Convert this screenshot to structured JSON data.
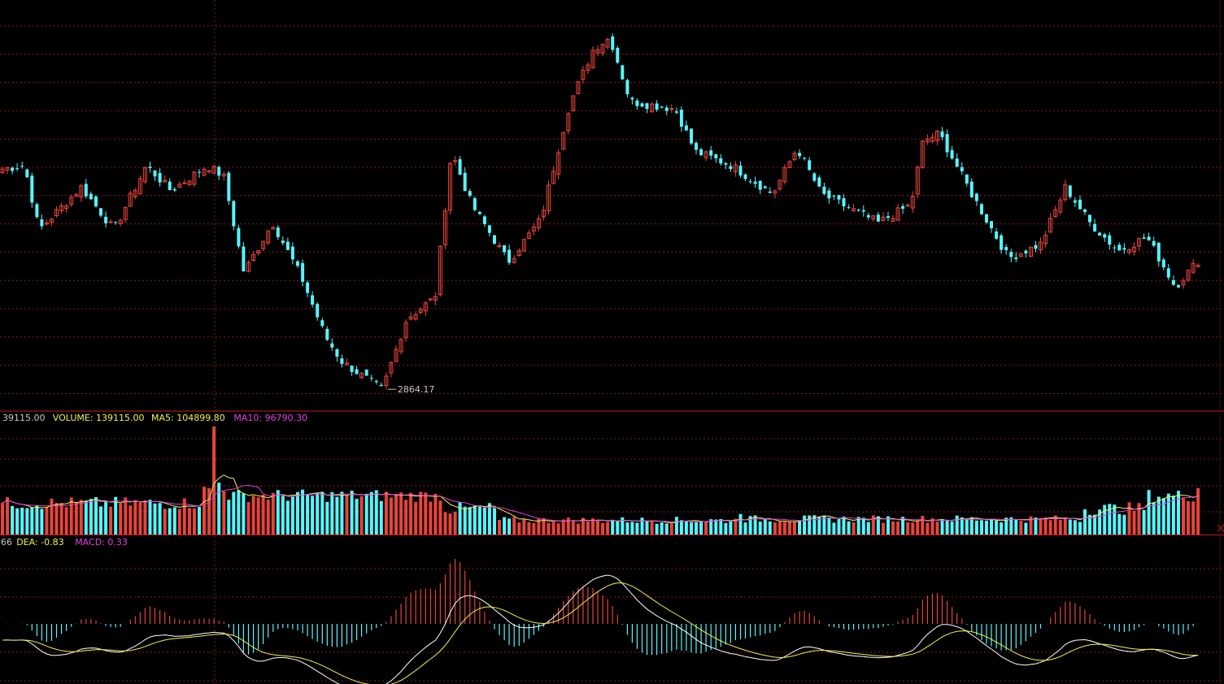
{
  "colors": {
    "background": "#000000",
    "grid": "#8a1a1a",
    "separator": "#c01c1c",
    "up": "#e8443a",
    "down": "#54f6ff",
    "dif": "#ffffff",
    "dea": "#f0f050",
    "ma5": "#f0f050",
    "ma10": "#e040e0",
    "label_text": "#c8c8c8",
    "vol_label": "#f0f050",
    "ma5_label": "#f0f050",
    "ma10_label": "#e040e0"
  },
  "price_panel": {
    "low_marker": "2864.17"
  },
  "volume_panel": {
    "lead_value": "39115.00",
    "volume_label": "VOLUME: 139115.00",
    "ma5_label": "MA5: 104899.80",
    "ma10_label": "MA10: 96790.30"
  },
  "macd_panel": {
    "lead_value": "66",
    "dea_label": "DEA: -0.83",
    "macd_label": "MACD: 0.33"
  },
  "chart_data": {
    "type": "candlestick",
    "description_points": [
      [
        0,
        0.62
      ],
      [
        30,
        0.63
      ],
      [
        48,
        0.45
      ],
      [
        100,
        0.57
      ],
      [
        140,
        0.45
      ],
      [
        180,
        0.63
      ],
      [
        210,
        0.56
      ],
      [
        255,
        0.63
      ],
      [
        275,
        0.6
      ],
      [
        300,
        0.33
      ],
      [
        335,
        0.47
      ],
      [
        370,
        0.32
      ],
      [
        400,
        0.15
      ],
      [
        420,
        0.08
      ],
      [
        470,
        0.0
      ],
      [
        500,
        0.2
      ],
      [
        535,
        0.26
      ],
      [
        555,
        0.67
      ],
      [
        580,
        0.52
      ],
      [
        625,
        0.36
      ],
      [
        665,
        0.48
      ],
      [
        700,
        0.8
      ],
      [
        730,
        0.96
      ],
      [
        750,
        0.99
      ],
      [
        775,
        0.81
      ],
      [
        830,
        0.79
      ],
      [
        855,
        0.67
      ],
      [
        900,
        0.63
      ],
      [
        950,
        0.55
      ],
      [
        980,
        0.68
      ],
      [
        1010,
        0.55
      ],
      [
        1080,
        0.47
      ],
      [
        1120,
        0.52
      ],
      [
        1135,
        0.7
      ],
      [
        1155,
        0.72
      ],
      [
        1195,
        0.55
      ],
      [
        1240,
        0.37
      ],
      [
        1280,
        0.41
      ],
      [
        1310,
        0.57
      ],
      [
        1340,
        0.47
      ],
      [
        1375,
        0.39
      ],
      [
        1410,
        0.43
      ],
      [
        1445,
        0.29
      ],
      [
        1480,
        0.38
      ]
    ]
  }
}
